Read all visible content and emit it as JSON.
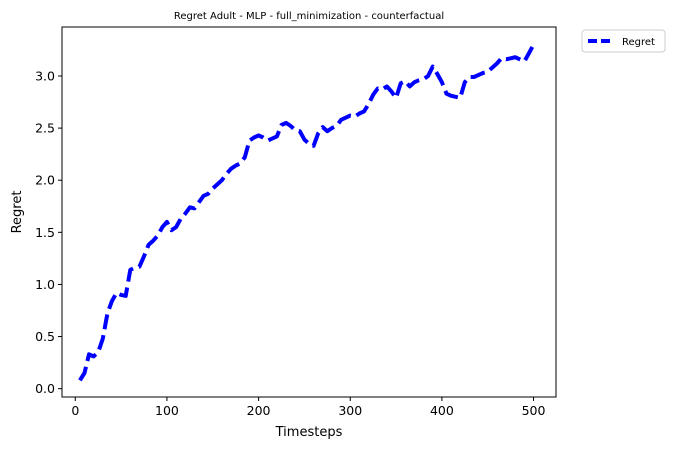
{
  "chart_data": {
    "type": "line",
    "title": "Regret Adult - MLP - full_minimization - counterfactual",
    "xlabel": "Timesteps",
    "ylabel": "Regret",
    "xlim": [
      -14.5,
      524.5
    ],
    "ylim": [
      -0.08,
      3.47
    ],
    "xticks": [
      0,
      100,
      200,
      300,
      400,
      500
    ],
    "yticks": [
      0.0,
      0.5,
      1.0,
      1.5,
      2.0,
      2.5,
      3.0
    ],
    "xtick_labels": [
      "0",
      "100",
      "200",
      "300",
      "400",
      "500"
    ],
    "ytick_labels": [
      "0.0",
      "0.5",
      "1.0",
      "1.5",
      "2.0",
      "2.5",
      "3.0"
    ],
    "grid": false,
    "legend_position": "outside-top-right",
    "series": [
      {
        "name": "Regret",
        "color": "#0000ff",
        "style": "dashed",
        "x": [
          5,
          10,
          15,
          20,
          25,
          30,
          35,
          40,
          45,
          50,
          55,
          60,
          65,
          70,
          75,
          80,
          85,
          90,
          95,
          100,
          105,
          110,
          115,
          120,
          125,
          130,
          135,
          140,
          145,
          150,
          155,
          160,
          165,
          170,
          175,
          180,
          185,
          190,
          195,
          200,
          205,
          210,
          215,
          220,
          225,
          230,
          235,
          240,
          245,
          250,
          255,
          260,
          265,
          270,
          275,
          280,
          285,
          290,
          295,
          300,
          305,
          310,
          315,
          320,
          325,
          330,
          335,
          340,
          345,
          350,
          355,
          360,
          365,
          370,
          375,
          380,
          385,
          390,
          395,
          400,
          405,
          410,
          415,
          420,
          425,
          430,
          435,
          440,
          445,
          450,
          455,
          460,
          465,
          470,
          475,
          480,
          485,
          490,
          495,
          500
        ],
        "y": [
          0.08,
          0.15,
          0.33,
          0.31,
          0.35,
          0.48,
          0.72,
          0.84,
          0.92,
          0.9,
          0.89,
          1.14,
          1.16,
          1.17,
          1.27,
          1.38,
          1.42,
          1.47,
          1.55,
          1.6,
          1.52,
          1.55,
          1.63,
          1.68,
          1.74,
          1.73,
          1.79,
          1.85,
          1.87,
          1.92,
          1.96,
          2.0,
          2.06,
          2.11,
          2.14,
          2.16,
          2.22,
          2.38,
          2.41,
          2.43,
          2.41,
          2.38,
          2.4,
          2.42,
          2.53,
          2.55,
          2.52,
          2.48,
          2.47,
          2.39,
          2.35,
          2.33,
          2.45,
          2.51,
          2.47,
          2.5,
          2.52,
          2.58,
          2.6,
          2.62,
          2.61,
          2.64,
          2.66,
          2.73,
          2.82,
          2.88,
          2.87,
          2.9,
          2.85,
          2.79,
          2.93,
          2.95,
          2.9,
          2.94,
          2.96,
          2.97,
          3.0,
          3.09,
          3.02,
          2.94,
          2.83,
          2.81,
          2.8,
          2.79,
          2.94,
          2.99,
          2.99,
          3.01,
          3.03,
          3.04,
          3.08,
          3.12,
          3.17,
          3.16,
          3.17,
          3.18,
          3.16,
          3.14,
          3.22,
          3.3
        ]
      }
    ]
  }
}
